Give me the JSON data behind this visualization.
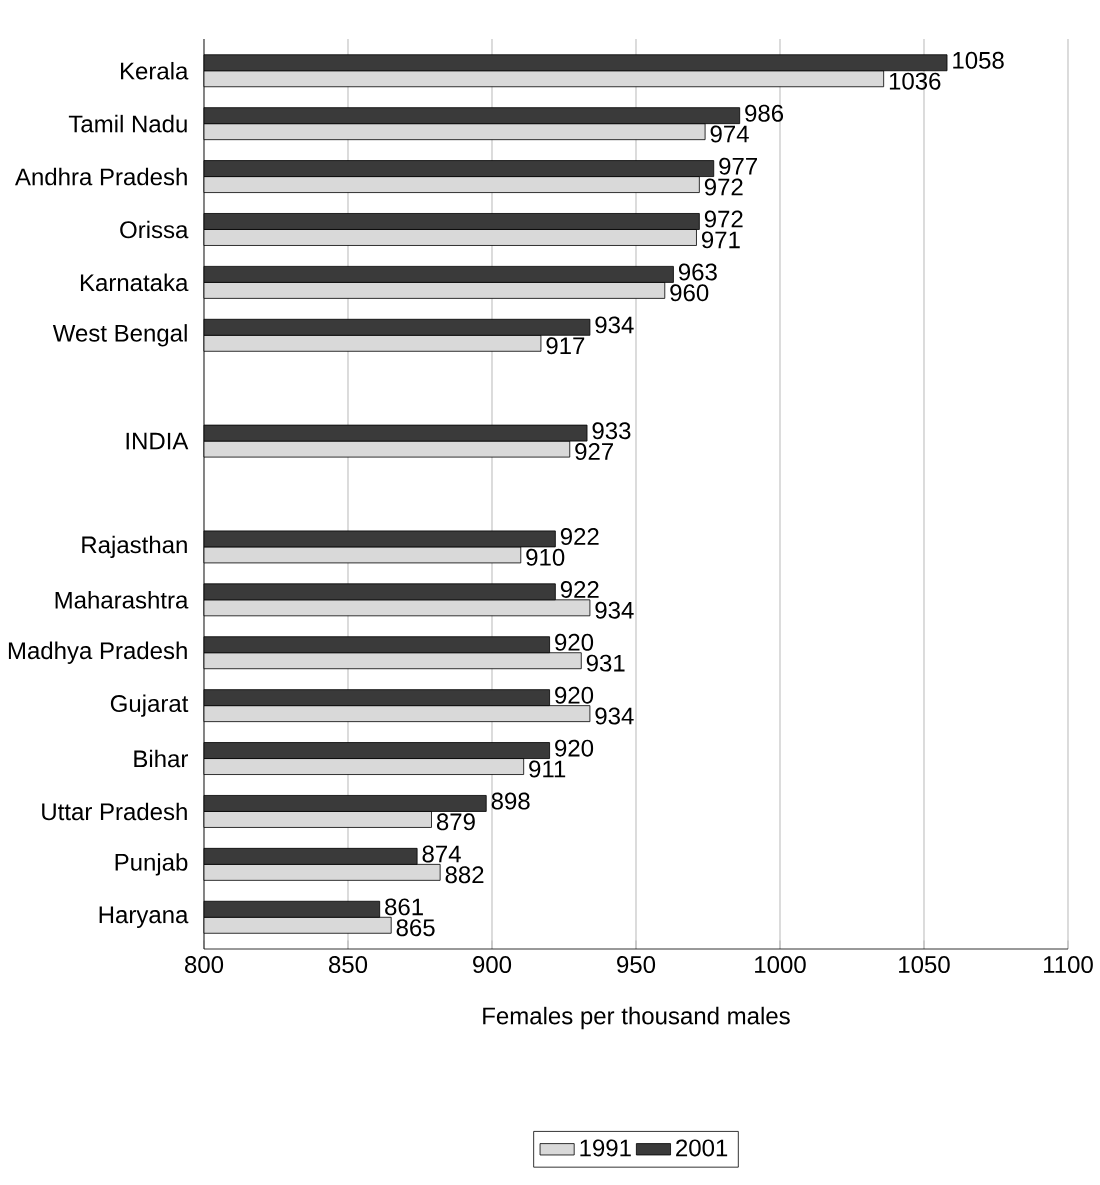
{
  "chart_data": {
    "type": "bar",
    "orientation": "horizontal",
    "xlabel": "Females per thousand males",
    "categories": [
      "Kerala",
      "Tamil Nadu",
      "Andhra Pradesh",
      "Orissa",
      "Karnataka",
      "West Bengal",
      null,
      "INDIA",
      null,
      "Rajasthan",
      "Maharashtra",
      "Madhya Pradesh",
      "Gujarat",
      "Bihar",
      "Uttar Pradesh",
      "Punjab",
      "Haryana"
    ],
    "series": [
      {
        "name": "1991",
        "color": "#d9d9d9",
        "values": [
          1036,
          974,
          972,
          971,
          960,
          917,
          null,
          927,
          null,
          910,
          934,
          931,
          934,
          911,
          879,
          882,
          865
        ]
      },
      {
        "name": "2001",
        "color": "#3a3a3a",
        "values": [
          1058,
          986,
          977,
          972,
          963,
          934,
          null,
          933,
          null,
          922,
          922,
          920,
          920,
          920,
          898,
          874,
          861
        ]
      }
    ],
    "xlim": [
      800,
      1100
    ],
    "xticks": [
      800,
      850,
      900,
      950,
      1000,
      1050,
      1100
    ],
    "grid": "x",
    "legend": "bottom",
    "data_labels": true
  }
}
